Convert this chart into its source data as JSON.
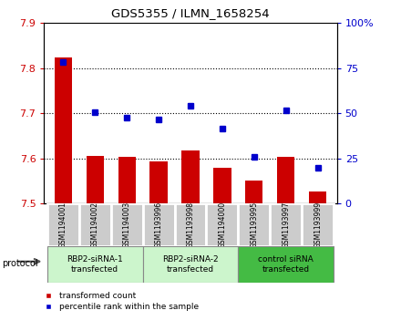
{
  "title": "GDS5355 / ILMN_1658254",
  "samples": [
    "GSM1194001",
    "GSM1194002",
    "GSM1194003",
    "GSM1193996",
    "GSM1193998",
    "GSM1194000",
    "GSM1193995",
    "GSM1193997",
    "GSM1193999"
  ],
  "red_values": [
    7.824,
    7.605,
    7.603,
    7.594,
    7.617,
    7.579,
    7.552,
    7.604,
    7.527
  ],
  "blue_values": [
    78.5,
    50.5,
    47.5,
    46.5,
    54.0,
    41.5,
    26.0,
    51.5,
    20.0
  ],
  "ylim_left": [
    7.5,
    7.9
  ],
  "ylim_right": [
    0,
    100
  ],
  "yticks_left": [
    7.5,
    7.6,
    7.7,
    7.8,
    7.9
  ],
  "yticks_right": [
    0,
    25,
    50,
    75,
    100
  ],
  "ytick_labels_right": [
    "0",
    "25",
    "50",
    "75",
    "100%"
  ],
  "groups": [
    {
      "label": "RBP2-siRNA-1\ntransfected",
      "start": 0,
      "end": 3,
      "color": "#ccf0cc"
    },
    {
      "label": "RBP2-siRNA-2\ntransfected",
      "start": 3,
      "end": 6,
      "color": "#ccf0cc"
    },
    {
      "label": "control siRNA\ntransfected",
      "start": 6,
      "end": 9,
      "color": "#55cc55"
    }
  ],
  "bar_color": "#cc0000",
  "dot_color": "#0000cc",
  "sample_box_color": "#cccccc",
  "legend_red_label": "transformed count",
  "legend_blue_label": "percentile rank within the sample",
  "protocol_label": "protocol"
}
